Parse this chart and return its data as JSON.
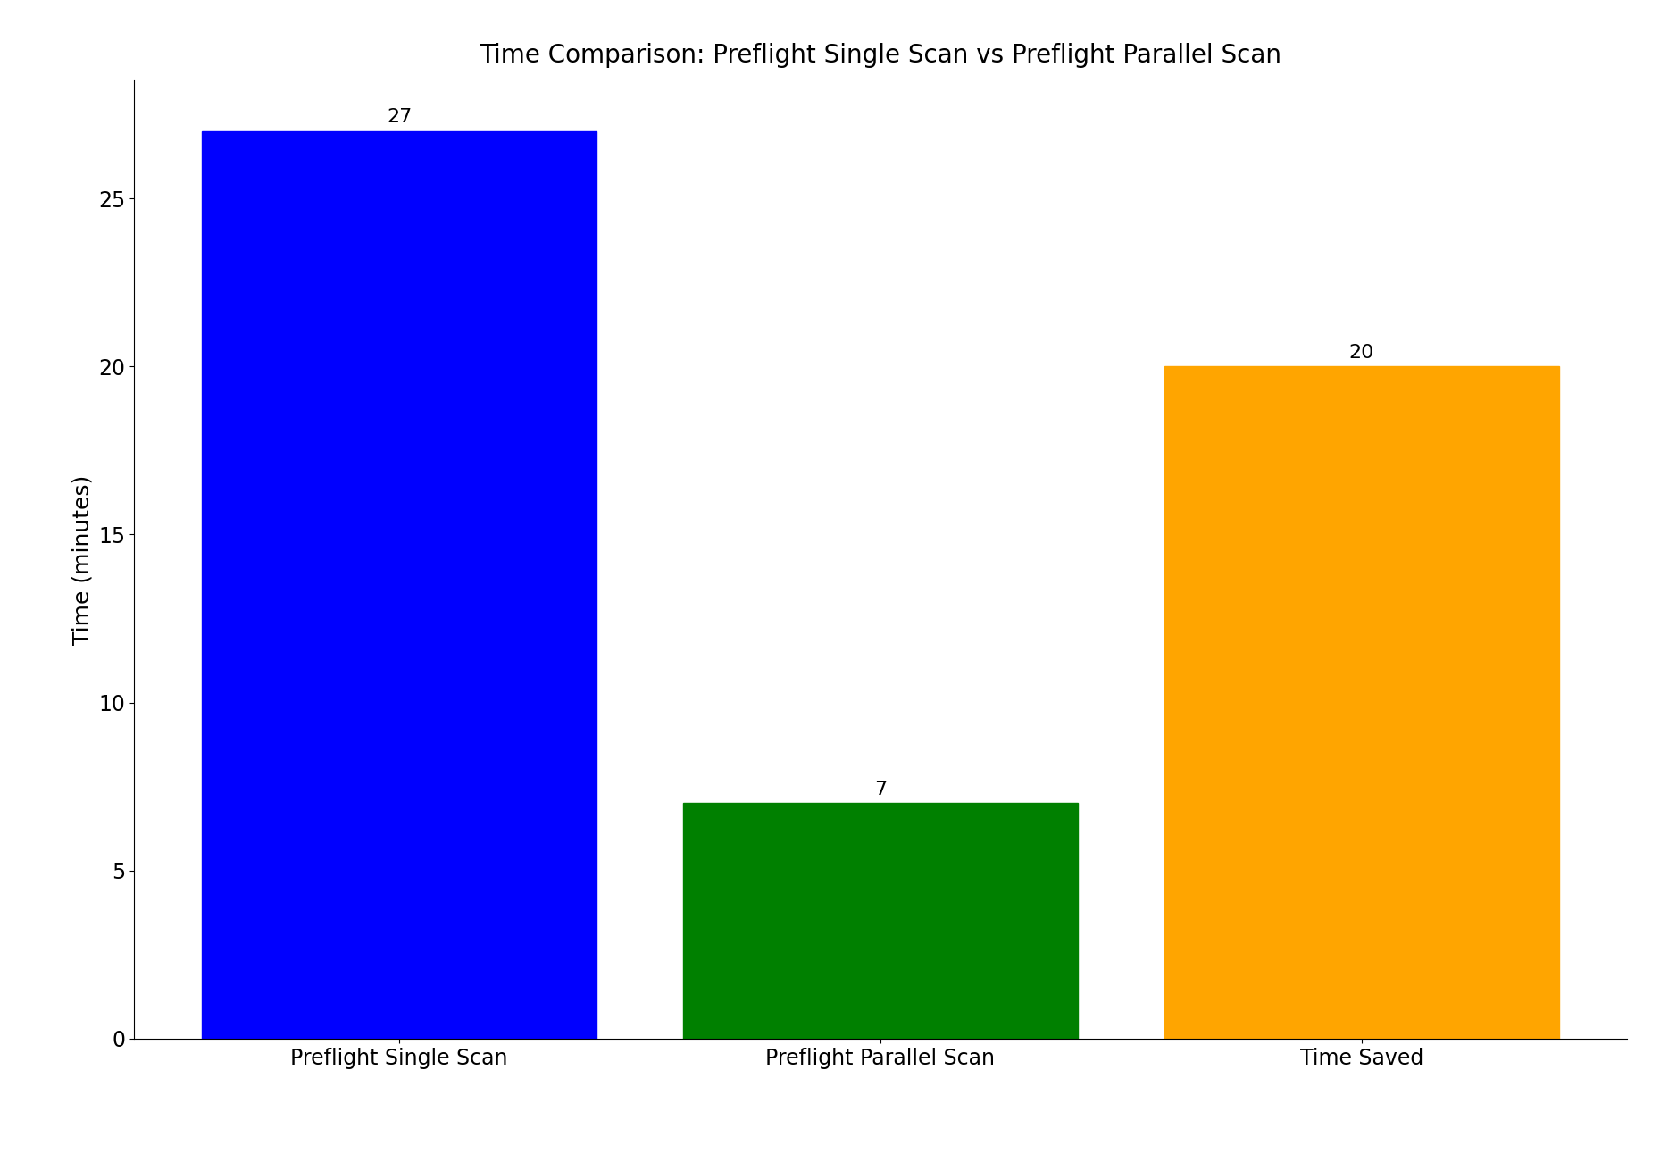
{
  "title": "Time Comparison: Preflight Single Scan vs Preflight Parallel Scan",
  "categories": [
    "Preflight Single Scan",
    "Preflight Parallel Scan",
    "Time Saved"
  ],
  "values": [
    27,
    7,
    20
  ],
  "bar_colors": [
    "blue",
    "green",
    "orange"
  ],
  "ylabel": "Time (minutes)",
  "ylim": [
    0,
    28.5
  ],
  "yticks": [
    0,
    5,
    10,
    15,
    20,
    25
  ],
  "bar_width": 0.82,
  "title_fontsize": 20,
  "label_fontsize": 18,
  "tick_fontsize": 17,
  "annotation_fontsize": 16
}
